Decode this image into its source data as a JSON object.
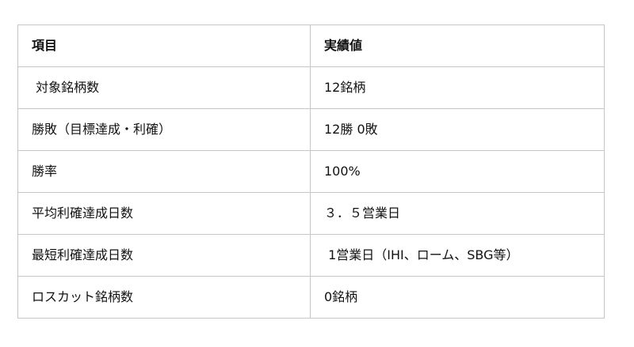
{
  "table": {
    "columns": [
      {
        "header": "項目"
      },
      {
        "header": "実績値"
      }
    ],
    "rows": [
      {
        "item": " 対象銘柄数",
        "value": "12銘柄"
      },
      {
        "item": "勝敗（目標達成・利確）",
        "value": "12勝 0敗"
      },
      {
        "item": "勝率",
        "value": "100%"
      },
      {
        "item": "平均利確達成日数",
        "value": "３．５営業日"
      },
      {
        "item": "最短利確達成日数",
        "value": " 1営業日（IHI、ローム、SBG等）"
      },
      {
        "item": "ロスカット銘柄数",
        "value": "0銘柄"
      }
    ],
    "style": {
      "border_color": "#c6c6c6",
      "text_color": "#111111",
      "background_color": "#ffffff"
    }
  }
}
